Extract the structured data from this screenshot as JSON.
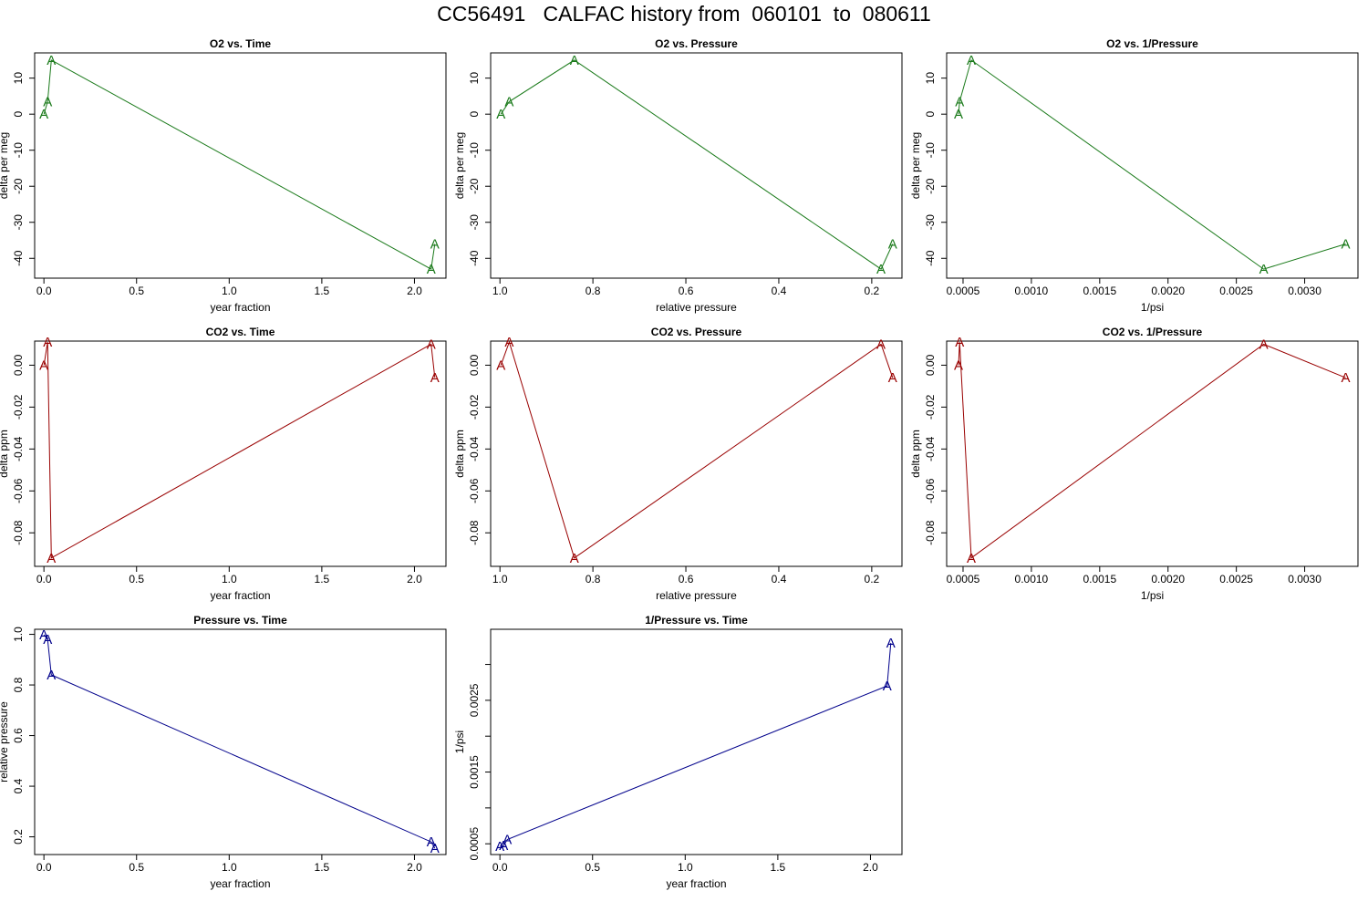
{
  "page": {
    "title": "CC56491   CALFAC history from  060101  to  080611"
  },
  "colors": {
    "o2": "#1a7a1a",
    "co2": "#990000",
    "pressure": "#00008b"
  },
  "chart_data": [
    {
      "title": "O2 vs. Time",
      "type": "line",
      "color": "o2",
      "marker": "A",
      "xlabel": "year fraction",
      "ylabel": "delta per meg",
      "xlim": [
        -0.05,
        2.17
      ],
      "ylim": [
        -45.5,
        17
      ],
      "x": [
        0.0,
        0.02,
        0.04,
        2.09,
        2.11
      ],
      "y": [
        0.0,
        3.5,
        15.0,
        -43.0,
        -36.0
      ],
      "xticks": [
        {
          "v": 0.0,
          "t": "0.0"
        },
        {
          "v": 0.5,
          "t": "0.5"
        },
        {
          "v": 1.0,
          "t": "1.0"
        },
        {
          "v": 1.5,
          "t": "1.5"
        },
        {
          "v": 2.0,
          "t": "2.0"
        }
      ],
      "yticks": [
        {
          "v": -40,
          "t": "-40"
        },
        {
          "v": -30,
          "t": "-30"
        },
        {
          "v": -20,
          "t": "-20"
        },
        {
          "v": -10,
          "t": "-10"
        },
        {
          "v": 0,
          "t": "0"
        },
        {
          "v": 10,
          "t": "10"
        }
      ]
    },
    {
      "title": "O2 vs. Pressure",
      "type": "line",
      "color": "o2",
      "marker": "A",
      "xlabel": "relative pressure",
      "ylabel": "delta per meg",
      "xlim": [
        1.02,
        0.135
      ],
      "ylim": [
        -45.5,
        17
      ],
      "x": [
        0.998,
        0.98,
        0.84,
        0.18,
        0.155
      ],
      "y": [
        0.0,
        3.5,
        15.0,
        -43.0,
        -36.0
      ],
      "xticks": [
        {
          "v": 1.0,
          "t": "1.0"
        },
        {
          "v": 0.8,
          "t": "0.8"
        },
        {
          "v": 0.6,
          "t": "0.6"
        },
        {
          "v": 0.4,
          "t": "0.4"
        },
        {
          "v": 0.2,
          "t": "0.2"
        }
      ],
      "yticks": [
        {
          "v": -40,
          "t": "-40"
        },
        {
          "v": -30,
          "t": "-30"
        },
        {
          "v": -20,
          "t": "-20"
        },
        {
          "v": -10,
          "t": "-10"
        },
        {
          "v": 0,
          "t": "0"
        },
        {
          "v": 10,
          "t": "10"
        }
      ]
    },
    {
      "title": "O2 vs. 1/Pressure",
      "type": "line",
      "color": "o2",
      "marker": "A",
      "xlabel": "1/psi",
      "ylabel": "delta per meg",
      "xlim": [
        0.00038,
        0.00339
      ],
      "ylim": [
        -45.5,
        17
      ],
      "x": [
        0.000467,
        0.000475,
        0.00056,
        0.0027,
        0.0033
      ],
      "y": [
        0.0,
        3.5,
        15.0,
        -43.0,
        -36.0
      ],
      "xticks": [
        {
          "v": 0.0005,
          "t": "0.0005"
        },
        {
          "v": 0.001,
          "t": "0.0010"
        },
        {
          "v": 0.0015,
          "t": "0.0015"
        },
        {
          "v": 0.002,
          "t": "0.0020"
        },
        {
          "v": 0.0025,
          "t": "0.0025"
        },
        {
          "v": 0.003,
          "t": "0.0030"
        }
      ],
      "yticks": [
        {
          "v": -40,
          "t": "-40"
        },
        {
          "v": -30,
          "t": "-30"
        },
        {
          "v": -20,
          "t": "-20"
        },
        {
          "v": -10,
          "t": "-10"
        },
        {
          "v": 0,
          "t": "0"
        },
        {
          "v": 10,
          "t": "10"
        }
      ]
    },
    {
      "title": "CO2 vs. Time",
      "type": "line",
      "color": "co2",
      "marker": "A",
      "xlabel": "year fraction",
      "ylabel": "delta ppm",
      "xlim": [
        -0.05,
        2.17
      ],
      "ylim": [
        -0.096,
        0.0115
      ],
      "x": [
        0.0,
        0.02,
        0.04,
        2.09,
        2.11
      ],
      "y": [
        0.0,
        0.011,
        -0.092,
        0.01,
        -0.006
      ],
      "xticks": [
        {
          "v": 0.0,
          "t": "0.0"
        },
        {
          "v": 0.5,
          "t": "0.5"
        },
        {
          "v": 1.0,
          "t": "1.0"
        },
        {
          "v": 1.5,
          "t": "1.5"
        },
        {
          "v": 2.0,
          "t": "2.0"
        }
      ],
      "yticks": [
        {
          "v": -0.08,
          "t": "-0.08"
        },
        {
          "v": -0.06,
          "t": "-0.06"
        },
        {
          "v": -0.04,
          "t": "-0.04"
        },
        {
          "v": -0.02,
          "t": "-0.02"
        },
        {
          "v": 0.0,
          "t": "0.00"
        }
      ]
    },
    {
      "title": "CO2 vs. Pressure",
      "type": "line",
      "color": "co2",
      "marker": "A",
      "xlabel": "relative pressure",
      "ylabel": "delta ppm",
      "xlim": [
        1.02,
        0.135
      ],
      "ylim": [
        -0.096,
        0.0115
      ],
      "x": [
        0.998,
        0.98,
        0.84,
        0.18,
        0.155
      ],
      "y": [
        0.0,
        0.011,
        -0.092,
        0.01,
        -0.006
      ],
      "xticks": [
        {
          "v": 1.0,
          "t": "1.0"
        },
        {
          "v": 0.8,
          "t": "0.8"
        },
        {
          "v": 0.6,
          "t": "0.6"
        },
        {
          "v": 0.4,
          "t": "0.4"
        },
        {
          "v": 0.2,
          "t": "0.2"
        }
      ],
      "yticks": [
        {
          "v": -0.08,
          "t": "-0.08"
        },
        {
          "v": -0.06,
          "t": "-0.06"
        },
        {
          "v": -0.04,
          "t": "-0.04"
        },
        {
          "v": -0.02,
          "t": "-0.02"
        },
        {
          "v": 0.0,
          "t": "0.00"
        }
      ]
    },
    {
      "title": "CO2 vs. 1/Pressure",
      "type": "line",
      "color": "co2",
      "marker": "A",
      "xlabel": "1/psi",
      "ylabel": "delta ppm",
      "xlim": [
        0.00038,
        0.00339
      ],
      "ylim": [
        -0.096,
        0.0115
      ],
      "x": [
        0.000467,
        0.000475,
        0.00056,
        0.0027,
        0.0033
      ],
      "y": [
        0.0,
        0.011,
        -0.092,
        0.01,
        -0.006
      ],
      "xticks": [
        {
          "v": 0.0005,
          "t": "0.0005"
        },
        {
          "v": 0.001,
          "t": "0.0010"
        },
        {
          "v": 0.0015,
          "t": "0.0015"
        },
        {
          "v": 0.002,
          "t": "0.0020"
        },
        {
          "v": 0.0025,
          "t": "0.0025"
        },
        {
          "v": 0.003,
          "t": "0.0030"
        }
      ],
      "yticks": [
        {
          "v": -0.08,
          "t": "-0.08"
        },
        {
          "v": -0.06,
          "t": "-0.06"
        },
        {
          "v": -0.04,
          "t": "-0.04"
        },
        {
          "v": -0.02,
          "t": "-0.02"
        },
        {
          "v": 0.0,
          "t": "0.00"
        }
      ]
    },
    {
      "title": "Pressure vs. Time",
      "type": "line",
      "color": "pressure",
      "marker": "A",
      "xlabel": "year fraction",
      "ylabel": "relative pressure",
      "xlim": [
        -0.05,
        2.17
      ],
      "ylim": [
        0.13,
        1.02
      ],
      "x": [
        0.0,
        0.02,
        0.04,
        2.09,
        2.11
      ],
      "y": [
        0.998,
        0.98,
        0.84,
        0.18,
        0.155
      ],
      "xticks": [
        {
          "v": 0.0,
          "t": "0.0"
        },
        {
          "v": 0.5,
          "t": "0.5"
        },
        {
          "v": 1.0,
          "t": "1.0"
        },
        {
          "v": 1.5,
          "t": "1.5"
        },
        {
          "v": 2.0,
          "t": "2.0"
        }
      ],
      "yticks": [
        {
          "v": 0.2,
          "t": "0.2"
        },
        {
          "v": 0.4,
          "t": "0.4"
        },
        {
          "v": 0.6,
          "t": "0.6"
        },
        {
          "v": 0.8,
          "t": "0.8"
        },
        {
          "v": 1.0,
          "t": "1.0"
        }
      ]
    },
    {
      "title": "1/Pressure vs. Time",
      "type": "line",
      "color": "pressure",
      "marker": "A",
      "xlabel": "year fraction",
      "ylabel": "1/psi",
      "xlim": [
        -0.05,
        2.17
      ],
      "ylim": [
        0.00035,
        0.00349
      ],
      "x": [
        0.0,
        0.02,
        0.04,
        2.09,
        2.11
      ],
      "y": [
        0.000467,
        0.000475,
        0.00056,
        0.0027,
        0.0033
      ],
      "xticks": [
        {
          "v": 0.0,
          "t": "0.0"
        },
        {
          "v": 0.5,
          "t": "0.5"
        },
        {
          "v": 1.0,
          "t": "1.0"
        },
        {
          "v": 1.5,
          "t": "1.5"
        },
        {
          "v": 2.0,
          "t": "2.0"
        }
      ],
      "yticks": [
        {
          "v": 0.0005,
          "t": "0.0005"
        },
        {
          "v": 0.001,
          "t": ""
        },
        {
          "v": 0.0015,
          "t": "0.0015"
        },
        {
          "v": 0.002,
          "t": ""
        },
        {
          "v": 0.0025,
          "t": "0.0025"
        },
        {
          "v": 0.003,
          "t": ""
        }
      ]
    }
  ]
}
